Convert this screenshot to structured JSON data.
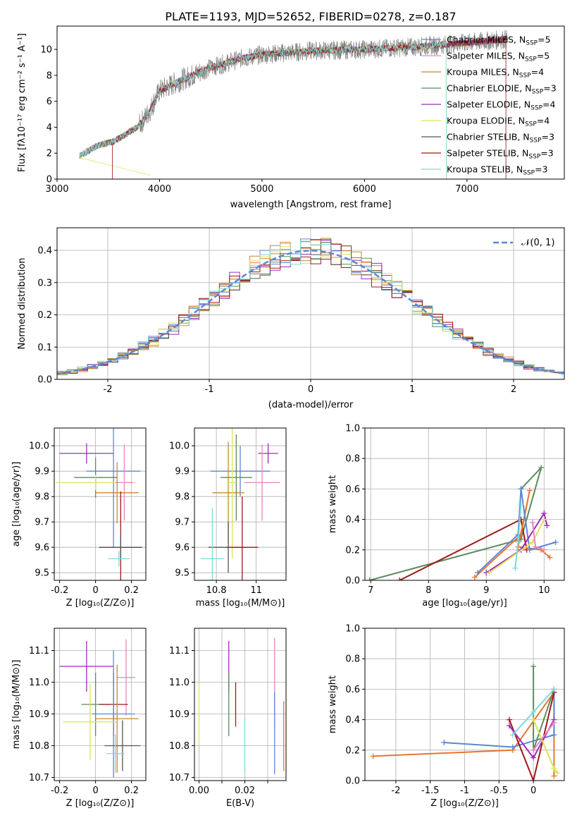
{
  "colors": [
    "#5b87d6",
    "#e8762c",
    "#c48a2c",
    "#5e8a5e",
    "#9b2cb8",
    "#dde35a",
    "#555555",
    "#a01818",
    "#7fd8dc",
    "#e388c0"
  ],
  "chart_data": [
    {
      "id": "spectrum",
      "type": "line",
      "title": "PLATE=1193, MJD=52652, FIBERID=0278, z=0.187",
      "xlabel": "wavelength [Angstrom, rest frame]",
      "ylabel": "Flux [fλ10⁻¹⁷ erg cm⁻² s⁻¹ A⁻¹]",
      "xlim": [
        3000,
        7950
      ],
      "ylim": [
        0,
        11.8
      ],
      "xticks": [
        3000,
        4000,
        5000,
        6000,
        7000
      ],
      "yticks": [
        0,
        2,
        4,
        6,
        8,
        10
      ],
      "legend_position": "top-right",
      "series": [
        {
          "name": "Chabrier MILES, N_SSP=5",
          "label_main": "Chabrier MILES, N",
          "label_sub": "SSP",
          "label_end": "=5",
          "color": "#5b87d6"
        },
        {
          "name": "Salpeter MILES, N_SSP=5",
          "label_main": "Salpeter MILES, N",
          "label_sub": "SSP",
          "label_end": "=5",
          "color": "#e388c0"
        },
        {
          "name": "Kroupa MILES, N_SSP=4",
          "label_main": "Kroupa MILES, N",
          "label_sub": "SSP",
          "label_end": "=4",
          "color": "#c48a2c"
        },
        {
          "name": "Chabrier ELODIE, N_SSP=3",
          "label_main": "Chabrier ELODIE, N",
          "label_sub": "SSP",
          "label_end": "=3",
          "color": "#5e8a5e"
        },
        {
          "name": "Salpeter ELODIE, N_SSP=4",
          "label_main": "Salpeter ELODIE, N",
          "label_sub": "SSP",
          "label_end": "=4",
          "color": "#9b2cb8"
        },
        {
          "name": "Kroupa ELODIE, N_SSP=4",
          "label_main": "Kroupa ELODIE, N",
          "label_sub": "SSP",
          "label_end": "=4",
          "color": "#dde35a"
        },
        {
          "name": "Chabrier STELIB, N_SSP=3",
          "label_main": "Chabrier STELIB, N",
          "label_sub": "SSP",
          "label_end": "=3",
          "color": "#555555"
        },
        {
          "name": "Salpeter STELIB, N_SSP=3",
          "label_main": "Salpeter STELIB, N",
          "label_sub": "SSP",
          "label_end": "=3",
          "color": "#a01818"
        },
        {
          "name": "Kroupa STELIB, N_SSP=3",
          "label_main": "Kroupa STELIB, N",
          "label_sub": "SSP",
          "label_end": "=3",
          "color": "#7fd8dc"
        }
      ],
      "data_curve": {
        "color": "#808080",
        "x": [
          3220,
          3400,
          3550,
          3700,
          3800,
          3900,
          4000,
          4200,
          4500,
          4800,
          5000,
          5500,
          6000,
          6500,
          7000,
          7400
        ],
        "y": [
          1.8,
          2.6,
          2.9,
          3.6,
          4.1,
          5.2,
          6.8,
          7.6,
          8.6,
          9.3,
          9.6,
          9.9,
          10.0,
          10.2,
          10.5,
          10.8
        ]
      },
      "model_curve": {
        "x": [
          3220,
          3400,
          3550,
          3700,
          3800,
          3900,
          4000,
          4200,
          4500,
          4800,
          5000,
          5500,
          6000,
          6500,
          7000,
          7400
        ],
        "y": [
          1.8,
          2.6,
          2.9,
          3.6,
          4.1,
          5.2,
          6.8,
          7.6,
          8.6,
          9.3,
          9.6,
          9.9,
          10.0,
          10.2,
          10.5,
          10.8
        ]
      }
    },
    {
      "id": "residuals",
      "type": "histogram",
      "xlabel": "(data-model)/error",
      "ylabel": "Normed distribution",
      "xlim": [
        -2.5,
        2.5
      ],
      "ylim": [
        0,
        0.47
      ],
      "xticks": [
        -2,
        -1,
        0,
        1,
        2
      ],
      "yticks": [
        0.0,
        0.1,
        0.2,
        0.3,
        0.4
      ],
      "bin_width": 0.1,
      "legend": {
        "label": "𝒩(0, 1)",
        "color": "#5b87d6",
        "position": "top-right"
      }
    },
    {
      "id": "age-vs-Z",
      "type": "errorbar",
      "xlabel": "Z [log₁₀(Z/Z⊙)]",
      "ylabel": "age  [log₁₀(age/yr)]",
      "xlim": [
        -0.23,
        0.28
      ],
      "ylim": [
        9.47,
        10.07
      ],
      "xticks": [
        -0.2,
        0.0,
        0.2
      ],
      "yticks": [
        9.5,
        9.6,
        9.7,
        9.8,
        9.9,
        10.0
      ],
      "points": [
        {
          "x": -0.05,
          "y": 9.97,
          "xerr": 0.15,
          "yerr": 0.04,
          "c": 4
        },
        {
          "x": 0.1,
          "y": 9.9,
          "xerr": 0.15,
          "yerr": 0.3,
          "c": 0
        },
        {
          "x": 0.0,
          "y": 9.875,
          "xerr": 0.12,
          "yerr": 0.08,
          "c": 3
        },
        {
          "x": 0.0,
          "y": 9.855,
          "xerr": 0.22,
          "yerr": 0.03,
          "c": 5
        },
        {
          "x": 0.16,
          "y": 9.855,
          "xerr": 0.05,
          "yerr": 0.15,
          "c": 9
        },
        {
          "x": 0.12,
          "y": 9.815,
          "xerr": 0.12,
          "yerr": 0.12,
          "c": 2
        },
        {
          "x": 0.14,
          "y": 9.6,
          "xerr": 0.12,
          "yerr": 0.22,
          "c": 7
        },
        {
          "x": 0.14,
          "y": 9.6,
          "xerr": 0.12,
          "yerr": 0.05,
          "c": 6
        },
        {
          "x": 0.13,
          "y": 9.555,
          "xerr": 0.06,
          "yerr": 0.03,
          "c": 8
        }
      ]
    },
    {
      "id": "age-vs-mass",
      "type": "errorbar",
      "xlabel": "mass [log₁₀(M/M⊙)]",
      "ylabel": "",
      "xlim": [
        10.69,
        11.15
      ],
      "ylim": [
        9.47,
        10.07
      ],
      "xticks": [
        10.8,
        11.0
      ],
      "yticks": [
        9.5,
        9.6,
        9.7,
        9.8,
        9.9,
        10.0
      ],
      "points": [
        {
          "x": 11.06,
          "y": 9.97,
          "xerr": 0.05,
          "yerr": 0.04,
          "c": 4
        },
        {
          "x": 10.92,
          "y": 9.9,
          "xerr": 0.15,
          "yerr": 0.1,
          "c": 0
        },
        {
          "x": 10.9,
          "y": 9.875,
          "xerr": 0.08,
          "yerr": 0.17,
          "c": 3
        },
        {
          "x": 11.03,
          "y": 9.855,
          "xerr": 0.09,
          "yerr": 0.15,
          "c": 9
        },
        {
          "x": 10.86,
          "y": 9.815,
          "xerr": 0.08,
          "yerr": 0.2,
          "c": 2
        },
        {
          "x": 10.88,
          "y": 9.855,
          "xerr": 0.02,
          "yerr": 0.3,
          "c": 5
        },
        {
          "x": 10.86,
          "y": 9.6,
          "xerr": 0.1,
          "yerr": 0.1,
          "c": 6
        },
        {
          "x": 10.93,
          "y": 9.6,
          "xerr": 0.08,
          "yerr": 0.2,
          "c": 7
        },
        {
          "x": 10.78,
          "y": 9.555,
          "xerr": 0.06,
          "yerr": 0.2,
          "c": 8
        }
      ]
    },
    {
      "id": "mass-weight-vs-age",
      "type": "line",
      "xlabel": "age  [log₁₀(age/yr)]",
      "ylabel": "mass weight",
      "xlim": [
        6.9,
        10.35
      ],
      "ylim": [
        0,
        1.0
      ],
      "xticks": [
        7,
        8,
        9,
        10
      ],
      "yticks": [
        0.0,
        0.2,
        0.4,
        0.6,
        0.8,
        1.0
      ],
      "series": [
        {
          "c": 3,
          "x": [
            6.98,
            9.6,
            9.95,
            9.6
          ],
          "y": [
            0.0,
            0.27,
            0.74,
            0.6
          ]
        },
        {
          "c": 7,
          "x": [
            7.5,
            9.6,
            9.7
          ],
          "y": [
            0.0,
            0.4,
            0.2
          ]
        },
        {
          "c": 1,
          "x": [
            8.8,
            9.6,
            9.75,
            9.55,
            9.95,
            10.1
          ],
          "y": [
            0.02,
            0.3,
            0.59,
            0.22,
            0.2,
            0.15
          ]
        },
        {
          "c": 0,
          "x": [
            8.85,
            9.55,
            9.6,
            9.75,
            10.2
          ],
          "y": [
            0.05,
            0.3,
            0.6,
            0.2,
            0.25
          ]
        },
        {
          "c": 4,
          "x": [
            9.0,
            9.6,
            10.0,
            10.05
          ],
          "y": [
            0.05,
            0.2,
            0.44,
            0.36
          ]
        },
        {
          "c": 5,
          "x": [
            9.05,
            9.8,
            10.0
          ],
          "y": [
            0.05,
            0.25,
            0.4
          ]
        },
        {
          "c": 8,
          "x": [
            9.5,
            9.55,
            9.6
          ],
          "y": [
            0.08,
            0.25,
            0.5
          ]
        },
        {
          "c": 9,
          "x": [
            9.8,
            9.85,
            10.0
          ],
          "y": [
            0.38,
            0.22,
            0.2
          ]
        }
      ]
    },
    {
      "id": "mass-vs-Z",
      "type": "errorbar",
      "xlabel": "Z [log₁₀(Z/Z⊙)]",
      "ylabel": "mass [log₁₀(M/M⊙)]",
      "xlim": [
        -0.23,
        0.28
      ],
      "ylim": [
        10.69,
        11.17
      ],
      "xticks": [
        -0.2,
        0.0,
        0.2
      ],
      "yticks": [
        10.7,
        10.8,
        10.9,
        11.0,
        11.1
      ],
      "points": [
        {
          "x": -0.05,
          "y": 11.05,
          "xerr": 0.15,
          "yerr": 0.08,
          "c": 4
        },
        {
          "x": 0.17,
          "y": 11.015,
          "xerr": 0.05,
          "yerr": 0.12,
          "c": 9
        },
        {
          "x": 0.0,
          "y": 10.93,
          "xerr": 0.08,
          "yerr": 0.1,
          "c": 3
        },
        {
          "x": 0.1,
          "y": 10.93,
          "xerr": 0.08,
          "yerr": 0.1,
          "c": 7
        },
        {
          "x": 0.1,
          "y": 10.9,
          "xerr": 0.12,
          "yerr": 0.2,
          "c": 0
        },
        {
          "x": 0.12,
          "y": 10.885,
          "xerr": 0.12,
          "yerr": 0.17,
          "c": 2
        },
        {
          "x": -0.03,
          "y": 10.875,
          "xerr": 0.15,
          "yerr": 0.12,
          "c": 5
        },
        {
          "x": 0.15,
          "y": 10.8,
          "xerr": 0.1,
          "yerr": 0.08,
          "c": 6
        },
        {
          "x": 0.11,
          "y": 10.775,
          "xerr": 0.05,
          "yerr": 0.06,
          "c": 8
        }
      ]
    },
    {
      "id": "mass-vs-EBV",
      "type": "errorbar",
      "xlabel": "E(B-V)",
      "ylabel": "",
      "xlim": [
        -0.002,
        0.038
      ],
      "ylim": [
        10.69,
        11.17
      ],
      "xticks": [
        0.0,
        0.01,
        0.02,
        0.03
      ],
      "xtick_labels": [
        "0.00",
        "",
        "0.02",
        ""
      ],
      "yticks": [
        10.7,
        10.8,
        10.9,
        11.0,
        11.1
      ],
      "points": [
        {
          "x": 0.0,
          "y": 10.9,
          "xerr": 0,
          "yerr": 0.1,
          "c": 5
        },
        {
          "x": 0.013,
          "y": 11.05,
          "xerr": 0,
          "yerr": 0.08,
          "c": 4
        },
        {
          "x": 0.013,
          "y": 10.93,
          "xerr": 0,
          "yerr": 0.1,
          "c": 3
        },
        {
          "x": 0.016,
          "y": 10.93,
          "xerr": 0,
          "yerr": 0.07,
          "c": 7
        },
        {
          "x": 0.02,
          "y": 10.8,
          "xerr": 0,
          "yerr": 0.09,
          "c": 8
        },
        {
          "x": 0.033,
          "y": 11.0,
          "xerr": 0,
          "yerr": 0.14,
          "c": 9
        },
        {
          "x": 0.033,
          "y": 10.84,
          "xerr": 0,
          "yerr": 0.13,
          "c": 0
        },
        {
          "x": 0.037,
          "y": 10.83,
          "xerr": 0,
          "yerr": 0.11,
          "c": 1
        }
      ]
    },
    {
      "id": "mass-weight-vs-Z",
      "type": "line",
      "xlabel": "Z [log₁₀(Z/Z⊙)]",
      "ylabel": "mass weight",
      "xlim": [
        -2.45,
        0.45
      ],
      "ylim": [
        0,
        1.0
      ],
      "xticks": [
        -2.0,
        -1.5,
        -1.0,
        -0.5,
        0.0
      ],
      "yticks": [
        0.0,
        0.2,
        0.4,
        0.6,
        0.8,
        1.0
      ],
      "series": [
        {
          "c": 1,
          "x": [
            -2.33,
            -0.3,
            0.3,
            0.3
          ],
          "y": [
            0.16,
            0.2,
            0.58,
            0.03
          ]
        },
        {
          "c": 0,
          "x": [
            -1.3,
            -0.3,
            0.3,
            0.3
          ],
          "y": [
            0.25,
            0.22,
            0.3,
            0.6
          ]
        },
        {
          "c": 7,
          "x": [
            -0.35,
            0.0,
            0.3
          ],
          "y": [
            0.4,
            0.0,
            0.58
          ]
        },
        {
          "c": 3,
          "x": [
            0.0,
            0.0,
            0.3
          ],
          "y": [
            0.75,
            0.2,
            0.6
          ]
        },
        {
          "c": 4,
          "x": [
            -0.35,
            0.0,
            0.3
          ],
          "y": [
            0.36,
            0.15,
            0.4
          ]
        },
        {
          "c": 5,
          "x": [
            0.0,
            0.3,
            0.35
          ],
          "y": [
            0.4,
            0.08,
            0.05
          ]
        },
        {
          "c": 8,
          "x": [
            -0.3,
            0.0,
            0.3
          ],
          "y": [
            0.3,
            0.45,
            0.6
          ]
        },
        {
          "c": 9,
          "x": [
            0.0,
            0.3
          ],
          "y": [
            0.2,
            0.38
          ]
        }
      ]
    }
  ]
}
